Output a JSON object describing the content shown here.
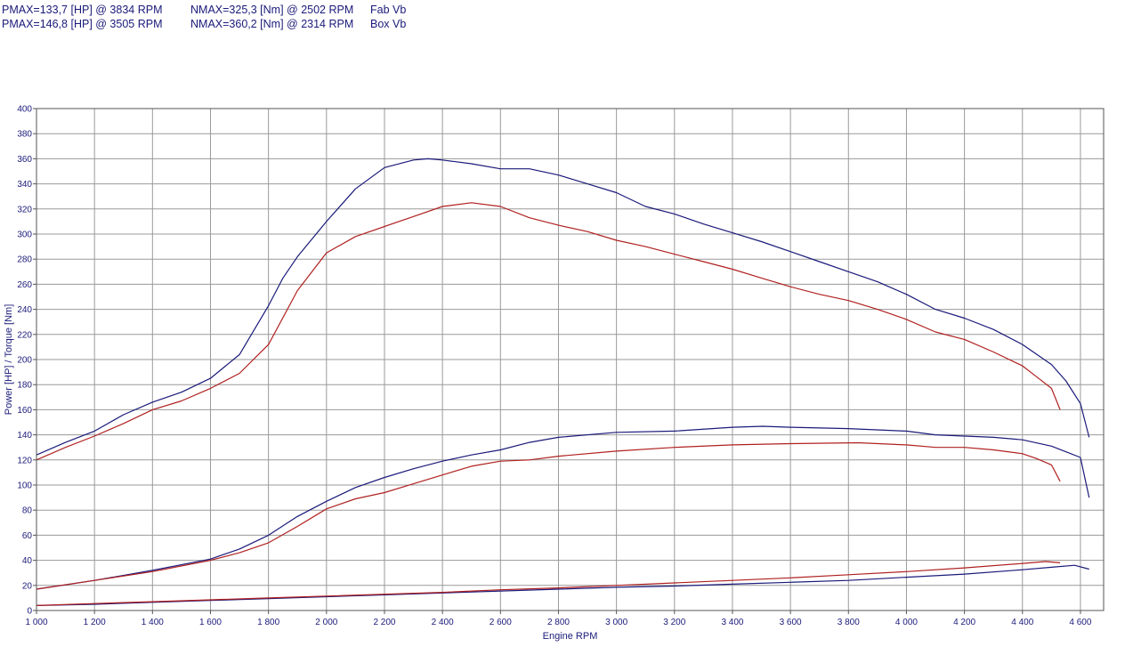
{
  "header": {
    "rows": [
      {
        "pmax": "PMAX=133,7 [HP] @ 3834 RPM",
        "nmax": "NMAX=325,3 [Nm] @ 2502 RPM",
        "name": "Fab Vb"
      },
      {
        "pmax": "PMAX=146,8 [HP] @ 3505 RPM",
        "nmax": "NMAX=360,2 [Nm] @ 2314 RPM",
        "name": "Box Vb"
      }
    ]
  },
  "colors": {
    "fab": "#b02020",
    "box": "#1a1a7a",
    "grid": "#9a9a9a",
    "text": "#1a1a7a"
  },
  "chart_data": {
    "type": "line",
    "title": "",
    "xlabel": "Engine RPM",
    "ylabel": "Power [HP] / Torque [Nm]",
    "xlim": [
      1000,
      4680
    ],
    "ylim": [
      0,
      400
    ],
    "xticks": [
      1000,
      1200,
      1400,
      1600,
      1800,
      2000,
      2200,
      2400,
      2600,
      2800,
      3000,
      3200,
      3400,
      3600,
      3800,
      4000,
      4200,
      4400,
      4600
    ],
    "xtick_labels": [
      "1 000",
      "1 200",
      "1 400",
      "1 600",
      "1 800",
      "2 000",
      "2 200",
      "2 400",
      "2 600",
      "2 800",
      "3 000",
      "3 200",
      "3 400",
      "3 600",
      "3 800",
      "4 000",
      "4 200",
      "4 400",
      "4 600"
    ],
    "yticks": [
      0,
      20,
      40,
      60,
      80,
      100,
      120,
      140,
      160,
      180,
      200,
      220,
      240,
      260,
      280,
      300,
      320,
      340,
      360,
      380,
      400
    ],
    "grid": true,
    "legend": "none",
    "series": [
      {
        "name": "Box Vb",
        "color_key": "box",
        "x": [
          1000,
          1100,
          1200,
          1300,
          1400,
          1500,
          1600,
          1700,
          1800,
          1850,
          1900,
          2000,
          2100,
          2200,
          2300,
          2350,
          2400,
          2500,
          2600,
          2700,
          2800,
          2900,
          3000,
          3100,
          3200,
          3300,
          3400,
          3500,
          3600,
          3700,
          3800,
          3900,
          4000,
          4100,
          4200,
          4300,
          4400,
          4500,
          4550,
          4600,
          4630
        ],
        "y": [
          124,
          134,
          143,
          156,
          166,
          174,
          185,
          204,
          243,
          265,
          282,
          310,
          336,
          353,
          359,
          360,
          359,
          356,
          352,
          352,
          347,
          340,
          333,
          322,
          316,
          308,
          301,
          294,
          286,
          278,
          270,
          262,
          252,
          240,
          233,
          224,
          212,
          196,
          183,
          165,
          138
        ]
      },
      {
        "name": "Fab Vb",
        "color_key": "fab",
        "x": [
          1000,
          1100,
          1200,
          1300,
          1400,
          1500,
          1600,
          1700,
          1800,
          1900,
          2000,
          2100,
          2200,
          2300,
          2400,
          2500,
          2600,
          2700,
          2800,
          2900,
          3000,
          3100,
          3200,
          3300,
          3400,
          3500,
          3600,
          3700,
          3800,
          3900,
          4000,
          4100,
          4200,
          4300,
          4400,
          4450,
          4500,
          4530
        ],
        "y": [
          120,
          130,
          139,
          149,
          160,
          167,
          177,
          189,
          212,
          255,
          285,
          298,
          306,
          314,
          322,
          325,
          322,
          313,
          307,
          302,
          295,
          290,
          284,
          278,
          272,
          265,
          258,
          252,
          247,
          240,
          232,
          222,
          216,
          206,
          195,
          186,
          177,
          160
        ]
      },
      {
        "name": "Box Vb",
        "color_key": "box",
        "x": [
          1000,
          1200,
          1400,
          1600,
          1700,
          1800,
          1900,
          2000,
          2100,
          2200,
          2300,
          2400,
          2500,
          2600,
          2700,
          2800,
          3000,
          3200,
          3400,
          3505,
          3600,
          3800,
          4000,
          4100,
          4200,
          4300,
          4400,
          4500,
          4600,
          4630
        ],
        "y": [
          17,
          24,
          32,
          41,
          49,
          60,
          75,
          87,
          98,
          106,
          113,
          119,
          124,
          128,
          134,
          138,
          142,
          143,
          146,
          146.8,
          146,
          145,
          143,
          140,
          139,
          138,
          136,
          131,
          122,
          90
        ]
      },
      {
        "name": "Fab Vb",
        "color_key": "fab",
        "x": [
          1000,
          1200,
          1400,
          1600,
          1700,
          1800,
          1900,
          2000,
          2100,
          2200,
          2300,
          2400,
          2500,
          2600,
          2700,
          2800,
          3000,
          3200,
          3400,
          3600,
          3834,
          4000,
          4100,
          4200,
          4300,
          4400,
          4450,
          4500,
          4530
        ],
        "y": [
          17,
          24,
          31,
          40,
          46,
          54,
          67,
          81,
          89,
          94,
          101,
          108,
          115,
          119,
          120,
          123,
          127,
          130,
          132,
          133,
          133.7,
          132,
          130,
          130,
          128,
          125,
          121,
          116,
          103
        ]
      },
      {
        "name": "Box Vb",
        "color_key": "box",
        "x": [
          1000,
          1200,
          1400,
          1600,
          1800,
          2000,
          2200,
          2400,
          2600,
          2800,
          3000,
          3200,
          3400,
          3600,
          3800,
          4000,
          4200,
          4400,
          4500,
          4580,
          4630
        ],
        "y": [
          4,
          5,
          6.5,
          8,
          9.5,
          11,
          12.5,
          14,
          15.5,
          17,
          18.5,
          19.5,
          21,
          22.5,
          24,
          26.5,
          29,
          32.5,
          34.5,
          36,
          33
        ]
      },
      {
        "name": "Fab Vb",
        "color_key": "fab",
        "x": [
          1000,
          1200,
          1400,
          1600,
          1800,
          2000,
          2200,
          2400,
          2600,
          2800,
          3000,
          3200,
          3400,
          3600,
          3800,
          4000,
          4200,
          4400,
          4480,
          4530
        ],
        "y": [
          4,
          5.5,
          7,
          8.5,
          10,
          11.5,
          13,
          14.5,
          16.5,
          18,
          20,
          22,
          24,
          26,
          28.5,
          31,
          34,
          37.5,
          39,
          38
        ]
      }
    ]
  }
}
